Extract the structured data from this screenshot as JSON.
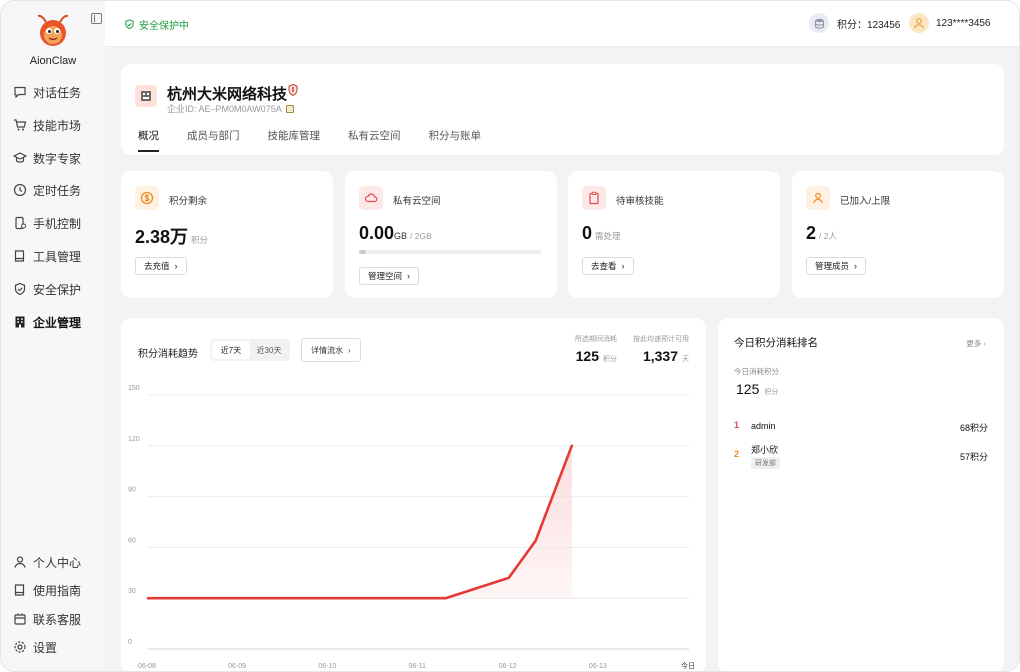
{
  "app": {
    "brand": "AionClaw"
  },
  "sidebar": {
    "items": [
      {
        "label": "对话任务",
        "icon": "chat-icon"
      },
      {
        "label": "技能市场",
        "icon": "cart-icon"
      },
      {
        "label": "数字专家",
        "icon": "graduation-cap-icon"
      },
      {
        "label": "定时任务",
        "icon": "clock-icon"
      },
      {
        "label": "手机控制",
        "icon": "phone-icon"
      },
      {
        "label": "工具管理",
        "icon": "book-icon"
      },
      {
        "label": "安全保护",
        "icon": "shield-icon"
      },
      {
        "label": "企业管理",
        "icon": "building-icon",
        "active": true
      }
    ],
    "bottom": [
      {
        "label": "个人中心",
        "icon": "user-icon"
      },
      {
        "label": "使用指南",
        "icon": "guide-icon"
      },
      {
        "label": "联系客服",
        "icon": "service-icon"
      },
      {
        "label": "设置",
        "icon": "gear-icon"
      }
    ]
  },
  "topbar": {
    "security_status": "安全保护中",
    "points_label": "积分：123456",
    "username": "123****3456"
  },
  "company": {
    "name": "杭州大米网络科技",
    "id_label": "企业ID: AE–PM0M0AW075A",
    "tabs": [
      "概况",
      "成员与部门",
      "技能库管理",
      "私有云空间",
      "积分与账单"
    ],
    "active_tab": 0
  },
  "stats": [
    {
      "label": "积分剩余",
      "value": "2.38万",
      "unit": "积分",
      "button": "去充值",
      "icon": "coin-icon",
      "color": "#f08a24"
    },
    {
      "label": "私有云空间",
      "value": "0.00",
      "value_unit": "GB",
      "unit": "/ 2GB",
      "button": "管理空间",
      "icon": "cloud-icon",
      "color": "#e5484d",
      "usage_fraction": 0.04
    },
    {
      "label": "待审核技能",
      "value": "0",
      "unit": "需处理",
      "button": "去查看",
      "icon": "clipboard-icon",
      "color": "#e5484d"
    },
    {
      "label": "已加入/上限",
      "value": "2",
      "unit": "/ 2人",
      "button": "管理成员",
      "icon": "person-icon",
      "color": "#f08a24"
    }
  ],
  "trend": {
    "title": "积分消耗趋势",
    "ranges": [
      "近7天",
      "近30天"
    ],
    "active_range": 0,
    "detail_button": "详情流水",
    "kpi1": {
      "label": "所选期间消耗",
      "value": "125",
      "unit": "积分"
    },
    "kpi2": {
      "label": "按此均速预计可用",
      "value": "1,337",
      "unit": "天"
    }
  },
  "chart_data": {
    "type": "area",
    "categories": [
      "06-08",
      "06-09",
      "06-10",
      "06-11",
      "06-12",
      "06-13",
      "今日"
    ],
    "x": [
      0,
      1,
      2,
      3,
      3.3,
      4,
      4.3,
      4.7
    ],
    "y": [
      30,
      30,
      30,
      30,
      30,
      42,
      64,
      120
    ],
    "ylim": [
      0,
      150
    ],
    "yticks": [
      "0",
      "30",
      "60",
      "90",
      "120",
      "150"
    ],
    "grid": true,
    "line_color": "#e53935",
    "fill_color": "#fbd9d9"
  },
  "ranking": {
    "title": "今日积分消耗排名",
    "more": "更多",
    "total_label": "今日消耗积分",
    "total_value": "125",
    "total_unit": "积分",
    "rows": [
      {
        "rank": "1",
        "name": "admin",
        "points": "68积分",
        "color": "#e5484d"
      },
      {
        "rank": "2",
        "name": "郑小欣",
        "tag": "研发部",
        "points": "57积分",
        "color": "#f08a24"
      }
    ]
  }
}
